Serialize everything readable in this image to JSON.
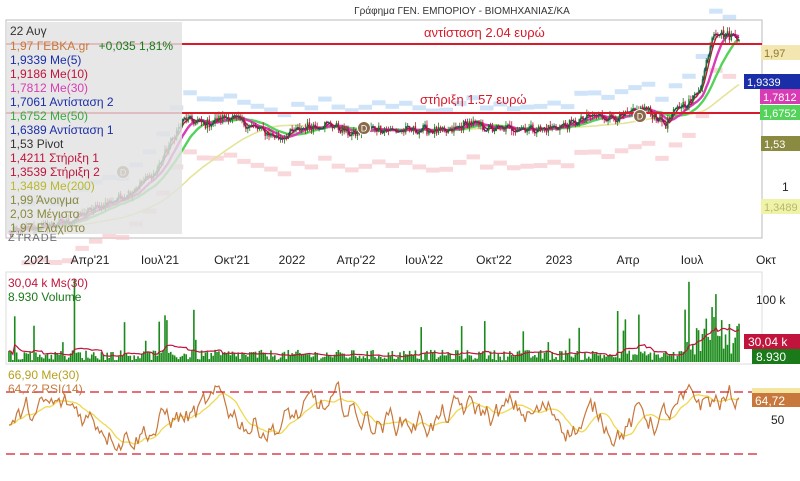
{
  "chart_data": {
    "type": "line",
    "title": "Γράφημα ΓΕΝ. ΕΜΠΟΡΙΟΥ - ΒΙΟΜΗΧΑΝΙΑΣ/ΚΑ",
    "watermark": "ZTRADE",
    "date": "22 Αυγ",
    "x_tick_labels": [
      "2021",
      "Απρ'21",
      "Ιουλ'21",
      "Οκτ'21",
      "2022",
      "Απρ'22",
      "Ιουλ'22",
      "Οκτ'22",
      "2023",
      "Απρ",
      "Ιουλ",
      "Οκτ"
    ],
    "price_panel": {
      "scale": "log",
      "ylim": [
        0.8,
        2.1
      ],
      "y_tick_labels": [
        "1"
      ],
      "lines": {
        "resistance": {
          "value": 2.04,
          "label": "αντίσταση 2.04  ευρώ",
          "color": "#d81b2a"
        },
        "support": {
          "value": 1.57,
          "label": "στήριξη 1.57  ευρώ",
          "color": "#d81b2a"
        }
      },
      "legend": [
        {
          "text": "22 Αυγ",
          "color": "#333333"
        },
        {
          "text": "1,97 ΓΕΒΚΑ.gr",
          "color": "#c8783c",
          "extra": "+0,035 1,81%",
          "extra_color": "#1a7a1a"
        },
        {
          "text": "1,9339 Me(5)",
          "color": "#1a2ea8"
        },
        {
          "text": "1,9186 Me(10)",
          "color": "#c0143c"
        },
        {
          "text": "1,7812 Me(30)",
          "color": "#d83cb4"
        },
        {
          "text": "1,7061 Αντίσταση 2",
          "color": "#1a2ea8"
        },
        {
          "text": "1,6752 Me(50)",
          "color": "#54d35a"
        },
        {
          "text": "1,6389 Αντίσταση 1",
          "color": "#1a2ea8"
        },
        {
          "text": "1,53 Pivot",
          "color": "#333333"
        },
        {
          "text": "1,4211 Στήριξη 1",
          "color": "#c0143c"
        },
        {
          "text": "1,3539 Στήριξη 2",
          "color": "#c0143c"
        },
        {
          "text": "1,3489 Me(200)",
          "color": "#d4d454"
        },
        {
          "text": "1,99 Άνοιγμα",
          "color": "#8a8a40"
        },
        {
          "text": "2,03 Μέγιστο",
          "color": "#8a8a40"
        },
        {
          "text": "1,97 Ελάχιστο",
          "color": "#8a8a40"
        }
      ],
      "right_badges": [
        {
          "text": "1,97",
          "bg": "#f4e6b0",
          "color": "#8a7a30"
        },
        {
          "text": "1,9339",
          "bg": "#1a2ea8",
          "color": "#ffffff"
        },
        {
          "text": "1,7812",
          "bg": "#d83cb4",
          "color": "#ffffff"
        },
        {
          "text": "1,6752",
          "bg": "#54d35a",
          "color": "#ffffff"
        },
        {
          "text": "1,53",
          "bg": "#8a8a40",
          "color": "#ffffff"
        },
        {
          "text": "1,3489",
          "bg": "#eef3a8",
          "color": "#b8b870"
        }
      ],
      "event_markers": [
        {
          "label": "D",
          "date": "Απρ'21"
        },
        {
          "label": "D",
          "date": "Απρ'22"
        },
        {
          "label": "D",
          "date": "Απρ'23"
        }
      ],
      "x": [
        0,
        0.08,
        0.16,
        0.2,
        0.24,
        0.27,
        0.3,
        0.33,
        0.37,
        0.41,
        0.44,
        0.47,
        0.5,
        0.53,
        0.57,
        0.6,
        0.63,
        0.66,
        0.7,
        0.73,
        0.77,
        0.8,
        0.84,
        0.87,
        0.9,
        0.92,
        0.935,
        0.95,
        0.965,
        0.98,
        1.0
      ],
      "close": [
        0.82,
        0.86,
        0.97,
        1.07,
        1.36,
        1.33,
        1.38,
        1.32,
        1.25,
        1.32,
        1.33,
        1.27,
        1.31,
        1.29,
        1.3,
        1.28,
        1.34,
        1.3,
        1.31,
        1.3,
        1.33,
        1.38,
        1.37,
        1.43,
        1.33,
        1.45,
        1.47,
        1.62,
        2.03,
        1.98,
        1.97
      ]
    },
    "volume_panel": {
      "legend": [
        {
          "text": "30,04 k Ms(30)",
          "color": "#c0143c"
        },
        {
          "text": "8.930 Volume",
          "color": "#1a7a1a"
        }
      ],
      "y_tick_labels": [
        "100 k"
      ],
      "right_badges": [
        {
          "text": "30,04 k",
          "bg": "#c0143c",
          "color": "#ffffff"
        },
        {
          "text": "8.930",
          "bg": "#1a7a1a",
          "color": "#ffffff"
        }
      ]
    },
    "rsi_panel": {
      "legend": [
        {
          "text": "66,90 Me(30)",
          "color": "#e0c840"
        },
        {
          "text": "64,72 RSI(14)",
          "color": "#c8783c"
        }
      ],
      "y_tick_labels": [
        "50"
      ],
      "levels": [
        70,
        50,
        30
      ],
      "right_badges": [
        {
          "text": "64,72",
          "bg": "#c8783c",
          "color": "#ffffff"
        }
      ],
      "ylim": [
        25,
        85
      ]
    }
  }
}
